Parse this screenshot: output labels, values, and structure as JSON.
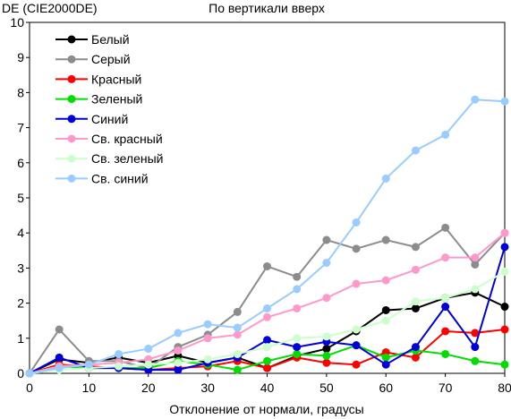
{
  "chart_data": {
    "type": "line",
    "title": "По вертикали вверх",
    "ylabel": "DE (CIE2000DE)",
    "xlabel": "Отклонение от нормали, градусы",
    "xlim": [
      0,
      80
    ],
    "ylim": [
      0,
      10
    ],
    "x_ticks": [
      "0",
      "10",
      "20",
      "30",
      "40",
      "50",
      "60",
      "70",
      "80"
    ],
    "y_ticks": [
      "0",
      "1",
      "2",
      "3",
      "4",
      "5",
      "6",
      "7",
      "8",
      "9",
      "10"
    ],
    "grid": false,
    "legend_position": "top-left",
    "x": [
      0,
      5,
      10,
      15,
      20,
      25,
      30,
      35,
      40,
      45,
      50,
      55,
      60,
      65,
      70,
      75,
      80
    ],
    "series": [
      {
        "name": "Белый",
        "color": "#000000",
        "values": [
          0,
          0.4,
          0.3,
          0.45,
          0.3,
          0.5,
          0.3,
          0.45,
          0.15,
          0.5,
          0.7,
          1.2,
          1.8,
          1.85,
          2.15,
          2.3,
          1.9
        ]
      },
      {
        "name": "Серый",
        "color": "#8c8c8c",
        "values": [
          0,
          1.25,
          0.35,
          0.35,
          0.15,
          0.75,
          1.1,
          1.75,
          3.05,
          2.75,
          3.8,
          3.55,
          3.8,
          3.6,
          4.15,
          3.1,
          4.0
        ]
      },
      {
        "name": "Красный",
        "color": "#ff0000",
        "values": [
          0,
          0.25,
          0.2,
          0.15,
          0.1,
          0.15,
          0.2,
          0.35,
          0.15,
          0.45,
          0.3,
          0.25,
          0.6,
          0.45,
          1.2,
          1.15,
          1.25
        ]
      },
      {
        "name": "Зеленый",
        "color": "#00dd00",
        "values": [
          0,
          0.2,
          0.15,
          0.15,
          0.15,
          0.35,
          0.25,
          0.1,
          0.35,
          0.55,
          0.5,
          0.8,
          0.45,
          0.65,
          0.55,
          0.35,
          0.25
        ]
      },
      {
        "name": "Синий",
        "color": "#0000dd",
        "values": [
          0,
          0.45,
          0.15,
          0.15,
          0.1,
          0.1,
          0.3,
          0.45,
          0.95,
          0.75,
          0.9,
          0.8,
          0.25,
          0.75,
          1.9,
          0.75,
          3.6
        ]
      },
      {
        "name": "Св. красный",
        "color": "#ff99cc",
        "values": [
          0,
          0.2,
          0.25,
          0.3,
          0.4,
          0.65,
          1.0,
          1.1,
          1.6,
          1.85,
          2.15,
          2.55,
          2.65,
          2.95,
          3.3,
          3.3,
          4.0
        ]
      },
      {
        "name": "Св. зеленый",
        "color": "#ccffcc",
        "values": [
          0,
          0.1,
          0.15,
          0.2,
          0.25,
          0.3,
          0.4,
          0.55,
          0.75,
          1.0,
          1.05,
          1.25,
          1.5,
          2.05,
          2.15,
          2.4,
          2.9
        ]
      },
      {
        "name": "Св. синий",
        "color": "#99ccff",
        "values": [
          0,
          0.15,
          0.25,
          0.55,
          0.7,
          1.15,
          1.4,
          1.3,
          1.85,
          2.4,
          3.15,
          4.3,
          5.55,
          6.35,
          6.8,
          7.8,
          7.75
        ]
      }
    ]
  }
}
